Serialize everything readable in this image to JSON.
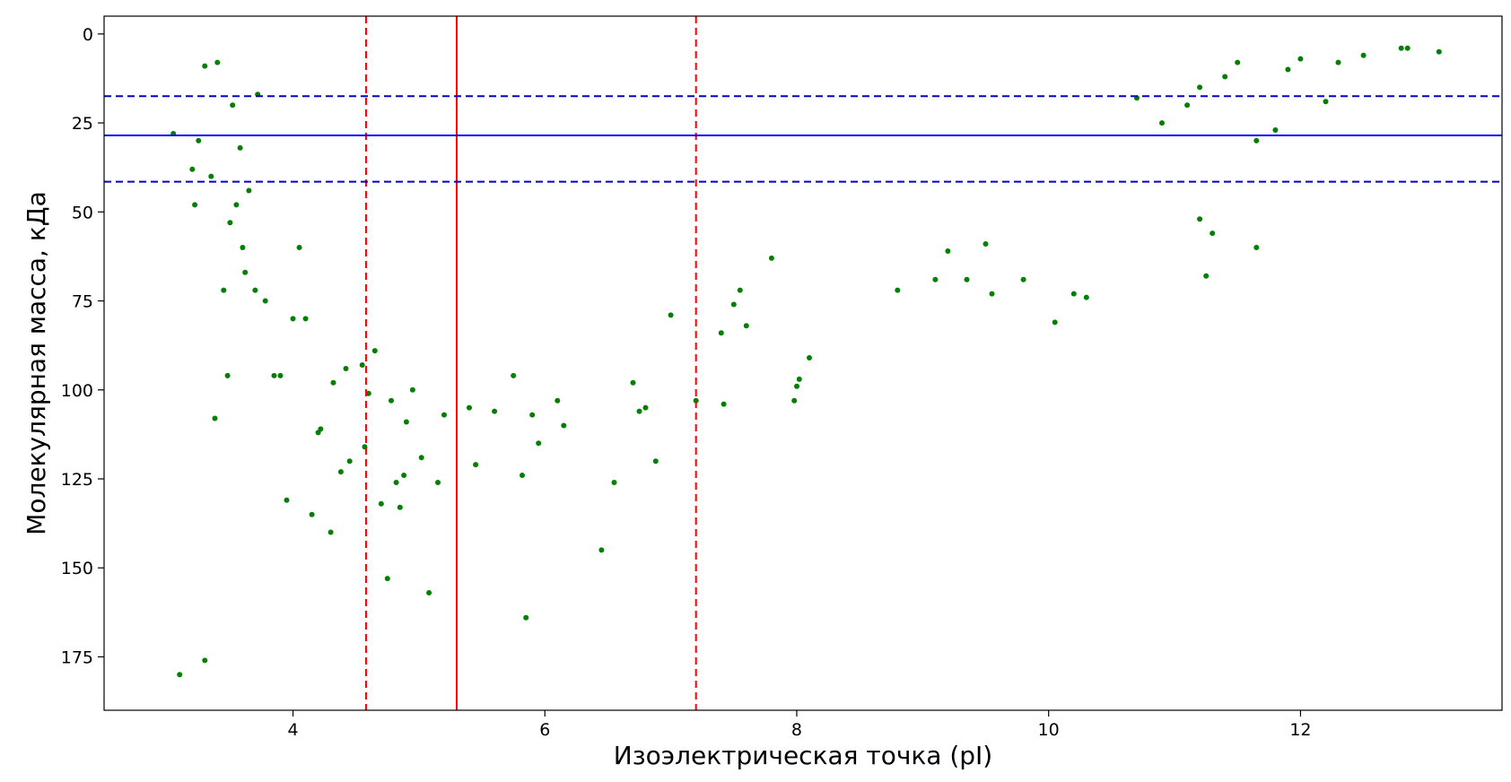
{
  "chart_data": {
    "type": "scatter",
    "title": "",
    "xlabel": "Изоэлектрическая точка (pI)",
    "ylabel": "Молекулярная масса, кДа",
    "xlim": [
      2.5,
      13.6
    ],
    "ylim": [
      190,
      -5
    ],
    "y_inverted": true,
    "x_ticks": [
      4,
      6,
      8,
      10,
      12
    ],
    "y_ticks": [
      0,
      25,
      50,
      75,
      100,
      125,
      150,
      175
    ],
    "grid": false,
    "marker_color": "#008000",
    "reference_lines": {
      "vertical": [
        {
          "x": 4.58,
          "color": "#ff0000",
          "style": "dashed"
        },
        {
          "x": 5.3,
          "color": "#ff0000",
          "style": "solid"
        },
        {
          "x": 7.2,
          "color": "#ff0000",
          "style": "dashed"
        }
      ],
      "horizontal": [
        {
          "y": 17.5,
          "color": "#0000cc",
          "style": "dashed"
        },
        {
          "y": 28.5,
          "color": "#0000ff",
          "style": "solid"
        },
        {
          "y": 41.5,
          "color": "#0000cc",
          "style": "dashed"
        }
      ]
    },
    "points": [
      [
        3.05,
        28
      ],
      [
        3.1,
        180
      ],
      [
        3.2,
        38
      ],
      [
        3.22,
        48
      ],
      [
        3.25,
        30
      ],
      [
        3.3,
        176
      ],
      [
        3.3,
        9
      ],
      [
        3.35,
        40
      ],
      [
        3.38,
        108
      ],
      [
        3.4,
        8
      ],
      [
        3.45,
        72
      ],
      [
        3.48,
        96
      ],
      [
        3.5,
        53
      ],
      [
        3.52,
        20
      ],
      [
        3.55,
        48
      ],
      [
        3.58,
        32
      ],
      [
        3.6,
        60
      ],
      [
        3.62,
        67
      ],
      [
        3.65,
        44
      ],
      [
        3.7,
        72
      ],
      [
        3.72,
        17
      ],
      [
        3.78,
        75
      ],
      [
        3.85,
        96
      ],
      [
        3.9,
        96
      ],
      [
        3.95,
        131
      ],
      [
        4.0,
        80
      ],
      [
        4.05,
        60
      ],
      [
        4.1,
        80
      ],
      [
        4.15,
        135
      ],
      [
        4.2,
        112
      ],
      [
        4.22,
        111
      ],
      [
        4.3,
        140
      ],
      [
        4.32,
        98
      ],
      [
        4.38,
        123
      ],
      [
        4.42,
        94
      ],
      [
        4.45,
        120
      ],
      [
        4.55,
        93
      ],
      [
        4.57,
        116
      ],
      [
        4.6,
        101
      ],
      [
        4.65,
        89
      ],
      [
        4.7,
        132
      ],
      [
        4.75,
        153
      ],
      [
        4.78,
        103
      ],
      [
        4.82,
        126
      ],
      [
        4.85,
        133
      ],
      [
        4.88,
        124
      ],
      [
        4.9,
        109
      ],
      [
        4.95,
        100
      ],
      [
        5.02,
        119
      ],
      [
        5.08,
        157
      ],
      [
        5.15,
        126
      ],
      [
        5.2,
        107
      ],
      [
        5.4,
        105
      ],
      [
        5.45,
        121
      ],
      [
        5.6,
        106
      ],
      [
        5.75,
        96
      ],
      [
        5.82,
        124
      ],
      [
        5.85,
        164
      ],
      [
        5.9,
        107
      ],
      [
        5.95,
        115
      ],
      [
        6.1,
        103
      ],
      [
        6.15,
        110
      ],
      [
        6.45,
        145
      ],
      [
        6.55,
        126
      ],
      [
        6.7,
        98
      ],
      [
        6.75,
        106
      ],
      [
        6.8,
        105
      ],
      [
        6.88,
        120
      ],
      [
        7.0,
        79
      ],
      [
        7.2,
        103
      ],
      [
        7.4,
        84
      ],
      [
        7.42,
        104
      ],
      [
        7.5,
        76
      ],
      [
        7.55,
        72
      ],
      [
        7.6,
        82
      ],
      [
        7.8,
        63
      ],
      [
        7.98,
        103
      ],
      [
        8.0,
        99
      ],
      [
        8.02,
        97
      ],
      [
        8.1,
        91
      ],
      [
        8.8,
        72
      ],
      [
        9.1,
        69
      ],
      [
        9.2,
        61
      ],
      [
        9.35,
        69
      ],
      [
        9.5,
        59
      ],
      [
        9.55,
        73
      ],
      [
        9.8,
        69
      ],
      [
        10.05,
        81
      ],
      [
        10.2,
        73
      ],
      [
        10.3,
        74
      ],
      [
        11.2,
        52
      ],
      [
        11.25,
        68
      ],
      [
        11.3,
        56
      ],
      [
        11.65,
        60
      ],
      [
        11.65,
        30
      ],
      [
        11.8,
        27
      ],
      [
        12.2,
        19
      ],
      [
        12.3,
        8
      ],
      [
        12.5,
        6
      ],
      [
        12.8,
        4
      ],
      [
        12.85,
        4
      ],
      [
        13.1,
        5
      ],
      [
        12.0,
        7
      ],
      [
        11.9,
        10
      ],
      [
        11.5,
        8
      ],
      [
        11.4,
        12
      ],
      [
        11.2,
        15
      ],
      [
        11.1,
        20
      ],
      [
        10.9,
        25
      ],
      [
        10.7,
        18
      ]
    ]
  }
}
